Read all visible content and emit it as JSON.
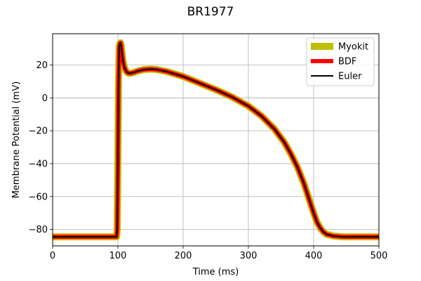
{
  "chart_data": {
    "type": "line",
    "title": "BR1977",
    "xlabel": "Time (ms)",
    "ylabel": "Membrane Potential (mV)",
    "xlim": [
      0,
      500
    ],
    "ylim": [
      -90,
      39
    ],
    "xticks": [
      0,
      100,
      200,
      300,
      400,
      500
    ],
    "yticks": [
      -80,
      -60,
      -40,
      -20,
      0,
      20
    ],
    "xtick_labels": [
      "0",
      "100",
      "200",
      "300",
      "400",
      "500"
    ],
    "ytick_labels": [
      "−80",
      "−60",
      "−40",
      "−20",
      "0",
      "20"
    ],
    "grid": true,
    "legend_position": "top-right",
    "series": [
      {
        "name": "Myokit",
        "color": "#bfbf00",
        "points": [
          [
            0,
            -84.5
          ],
          [
            98,
            -84.5
          ],
          [
            99,
            -80
          ],
          [
            100,
            -40
          ],
          [
            101,
            10
          ],
          [
            102,
            31
          ],
          [
            103,
            33
          ],
          [
            104,
            33.5
          ],
          [
            105,
            32
          ],
          [
            106,
            28
          ],
          [
            108,
            22
          ],
          [
            110,
            18.5
          ],
          [
            113,
            16
          ],
          [
            116,
            15
          ],
          [
            120,
            15
          ],
          [
            125,
            15.5
          ],
          [
            130,
            16.3
          ],
          [
            140,
            17.2
          ],
          [
            150,
            17.5
          ],
          [
            160,
            17.2
          ],
          [
            175,
            16
          ],
          [
            200,
            13
          ],
          [
            225,
            9
          ],
          [
            250,
            5
          ],
          [
            275,
            0.5
          ],
          [
            300,
            -5
          ],
          [
            320,
            -11
          ],
          [
            340,
            -19
          ],
          [
            355,
            -27
          ],
          [
            365,
            -34
          ],
          [
            375,
            -42
          ],
          [
            385,
            -52
          ],
          [
            395,
            -64
          ],
          [
            400,
            -70
          ],
          [
            405,
            -75.5
          ],
          [
            410,
            -79
          ],
          [
            415,
            -81.5
          ],
          [
            420,
            -83
          ],
          [
            430,
            -84
          ],
          [
            445,
            -84.5
          ],
          [
            500,
            -84.5
          ]
        ]
      },
      {
        "name": "BDF",
        "color": "#ff0000",
        "points": [
          [
            0,
            -84.5
          ],
          [
            98,
            -84.5
          ],
          [
            99,
            -80
          ],
          [
            100,
            -40
          ],
          [
            101,
            10
          ],
          [
            102,
            31
          ],
          [
            103,
            33
          ],
          [
            104,
            33.5
          ],
          [
            105,
            32
          ],
          [
            106,
            28
          ],
          [
            108,
            22
          ],
          [
            110,
            18.5
          ],
          [
            113,
            16
          ],
          [
            116,
            15
          ],
          [
            120,
            15
          ],
          [
            125,
            15.5
          ],
          [
            130,
            16.3
          ],
          [
            140,
            17.2
          ],
          [
            150,
            17.5
          ],
          [
            160,
            17.2
          ],
          [
            175,
            16
          ],
          [
            200,
            13
          ],
          [
            225,
            9
          ],
          [
            250,
            5
          ],
          [
            275,
            0.5
          ],
          [
            300,
            -5
          ],
          [
            320,
            -11
          ],
          [
            340,
            -19
          ],
          [
            355,
            -27
          ],
          [
            365,
            -34
          ],
          [
            375,
            -42
          ],
          [
            385,
            -52
          ],
          [
            395,
            -64
          ],
          [
            400,
            -70
          ],
          [
            405,
            -75.5
          ],
          [
            410,
            -79
          ],
          [
            415,
            -81.5
          ],
          [
            420,
            -83
          ],
          [
            430,
            -84
          ],
          [
            445,
            -84.5
          ],
          [
            500,
            -84.5
          ]
        ]
      },
      {
        "name": "Euler",
        "color": "#000000",
        "points": [
          [
            0,
            -84.5
          ],
          [
            98,
            -84.5
          ],
          [
            99,
            -80
          ],
          [
            100,
            -40
          ],
          [
            101,
            10
          ],
          [
            102,
            31
          ],
          [
            103,
            33
          ],
          [
            104,
            33.5
          ],
          [
            105,
            32
          ],
          [
            106,
            28
          ],
          [
            108,
            22
          ],
          [
            110,
            18.5
          ],
          [
            113,
            16
          ],
          [
            116,
            15
          ],
          [
            120,
            15
          ],
          [
            125,
            15.5
          ],
          [
            130,
            16.3
          ],
          [
            140,
            17.2
          ],
          [
            150,
            17.5
          ],
          [
            160,
            17.2
          ],
          [
            175,
            16
          ],
          [
            200,
            13
          ],
          [
            225,
            9
          ],
          [
            250,
            5
          ],
          [
            275,
            0.5
          ],
          [
            300,
            -5
          ],
          [
            320,
            -11
          ],
          [
            340,
            -19
          ],
          [
            355,
            -27
          ],
          [
            365,
            -34
          ],
          [
            375,
            -42
          ],
          [
            385,
            -52
          ],
          [
            395,
            -64
          ],
          [
            400,
            -70
          ],
          [
            405,
            -75.5
          ],
          [
            410,
            -79
          ],
          [
            415,
            -81.5
          ],
          [
            420,
            -83
          ],
          [
            430,
            -84
          ],
          [
            445,
            -84.5
          ],
          [
            500,
            -84.5
          ]
        ]
      }
    ]
  }
}
